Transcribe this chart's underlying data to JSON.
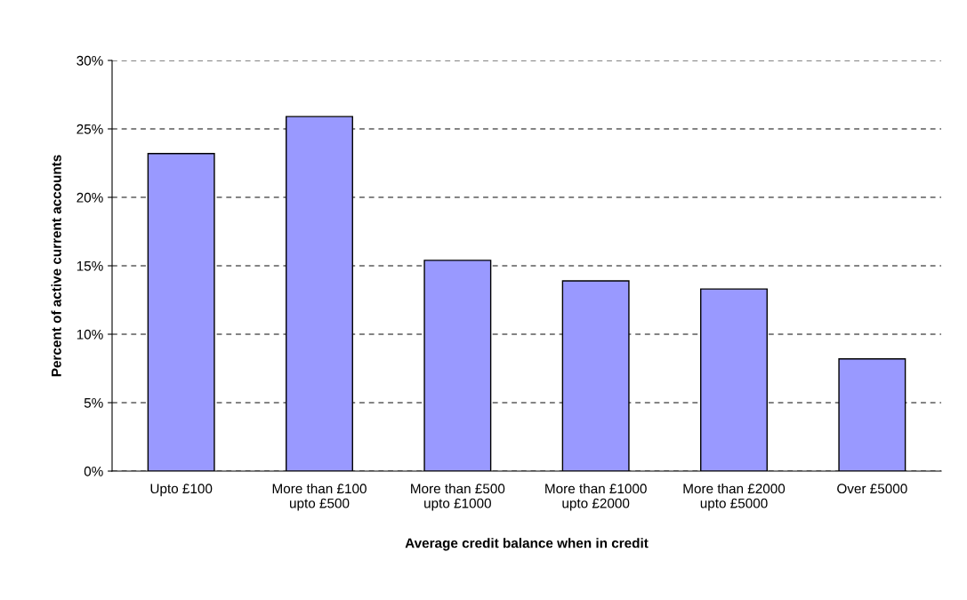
{
  "chart_data": {
    "type": "bar",
    "xlabel": "Average credit balance when in credit",
    "ylabel": "Percent of active current accounts",
    "categories": [
      "Upto £100",
      "More than £100\nupto £500",
      "More than £500\nupto £1000",
      "More than £1000\nupto £2000",
      "More than £2000\nupto £5000",
      "Over £5000"
    ],
    "values": [
      23.2,
      25.9,
      15.4,
      13.9,
      13.3,
      8.2
    ],
    "color": "#9999ff",
    "ylim": [
      0,
      30
    ],
    "yticks": [
      {
        "value": 0,
        "label": "0%"
      },
      {
        "value": 5,
        "label": "5%"
      },
      {
        "value": 10,
        "label": "10%"
      },
      {
        "value": 15,
        "label": "15%"
      },
      {
        "value": 20,
        "label": "20%"
      },
      {
        "value": 25,
        "label": "25%"
      },
      {
        "value": 30,
        "label": "30%"
      }
    ],
    "grid": "y",
    "legend": false
  }
}
